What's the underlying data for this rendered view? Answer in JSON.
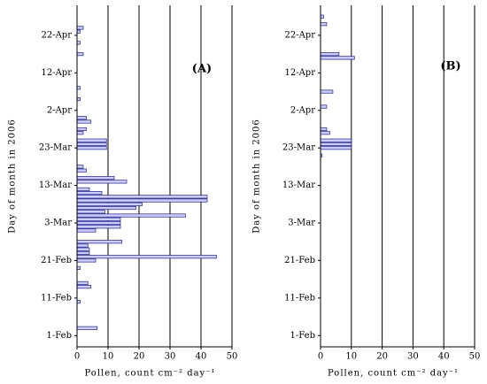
{
  "chart_data": [
    {
      "type": "bar",
      "orientation": "horizontal",
      "title": "(A)",
      "xlabel": "Pollen, count cm⁻² day⁻¹",
      "ylabel": "Day of month in 2006",
      "x": [
        "2006-02-03",
        "2006-02-10",
        "2006-02-14",
        "2006-02-15",
        "2006-02-19",
        "2006-02-21",
        "2006-02-22",
        "2006-02-23",
        "2006-02-24",
        "2006-02-25",
        "2006-02-26",
        "2006-03-01",
        "2006-03-02",
        "2006-03-03",
        "2006-03-04",
        "2006-03-05",
        "2006-03-06",
        "2006-03-07",
        "2006-03-08",
        "2006-03-09",
        "2006-03-10",
        "2006-03-11",
        "2006-03-12",
        "2006-03-14",
        "2006-03-15",
        "2006-03-17",
        "2006-03-18",
        "2006-03-23",
        "2006-03-24",
        "2006-03-25",
        "2006-03-27",
        "2006-03-28",
        "2006-03-30",
        "2006-03-31",
        "2006-04-05",
        "2006-04-08",
        "2006-04-17",
        "2006-04-20",
        "2006-04-23",
        "2006-04-24"
      ],
      "values": [
        6.5,
        1,
        4.5,
        3.5,
        1,
        6,
        45,
        4,
        4,
        3.5,
        14.5,
        6,
        14,
        14,
        14,
        35,
        9,
        19,
        21,
        42,
        42,
        8,
        4,
        16,
        12,
        3,
        2,
        9.5,
        9.5,
        9.5,
        2,
        3,
        4.5,
        3,
        1,
        1,
        2,
        1,
        1,
        2
      ],
      "color": "#ccccff",
      "xlim": [
        0,
        50
      ],
      "xticks": [
        0,
        10,
        20,
        30,
        40,
        50
      ],
      "ylim": [
        "2006-01-29",
        "2006-04-30"
      ],
      "yticks": [
        {
          "value": "2006-02-01",
          "label": "1-Feb"
        },
        {
          "value": "2006-02-11",
          "label": "11-Feb"
        },
        {
          "value": "2006-02-21",
          "label": "21-Feb"
        },
        {
          "value": "2006-03-03",
          "label": "3-Mar"
        },
        {
          "value": "2006-03-13",
          "label": "13-Mar"
        },
        {
          "value": "2006-03-23",
          "label": "23-Mar"
        },
        {
          "value": "2006-04-02",
          "label": "2-Apr"
        },
        {
          "value": "2006-04-12",
          "label": "12-Apr"
        },
        {
          "value": "2006-04-22",
          "label": "22-Apr"
        }
      ],
      "grid": true
    },
    {
      "type": "bar",
      "orientation": "horizontal",
      "title": "(B)",
      "xlabel": "Pollen, count cm⁻² day⁻¹",
      "ylabel": "Day of month in 2006",
      "x": [
        "2006-03-21",
        "2006-03-23",
        "2006-03-24",
        "2006-03-25",
        "2006-03-27",
        "2006-03-28",
        "2006-04-03",
        "2006-04-07",
        "2006-04-16",
        "2006-04-17",
        "2006-04-25",
        "2006-04-27"
      ],
      "values": [
        0.5,
        10,
        10,
        10,
        3,
        2,
        2,
        4,
        11,
        6,
        2,
        1
      ],
      "color": "#ccccff",
      "xlim": [
        0,
        50
      ],
      "xticks": [
        0,
        10,
        20,
        30,
        40,
        50
      ],
      "ylim": [
        "2006-01-29",
        "2006-04-30"
      ],
      "yticks": [
        {
          "value": "2006-02-01",
          "label": "1-Feb"
        },
        {
          "value": "2006-02-11",
          "label": "11-Feb"
        },
        {
          "value": "2006-02-21",
          "label": "21-Feb"
        },
        {
          "value": "2006-03-03",
          "label": "3-Mar"
        },
        {
          "value": "2006-03-13",
          "label": "13-Mar"
        },
        {
          "value": "2006-03-23",
          "label": "23-Mar"
        },
        {
          "value": "2006-04-02",
          "label": "2-Apr"
        },
        {
          "value": "2006-04-12",
          "label": "12-Apr"
        },
        {
          "value": "2006-04-22",
          "label": "22-Apr"
        }
      ],
      "grid": true
    }
  ]
}
